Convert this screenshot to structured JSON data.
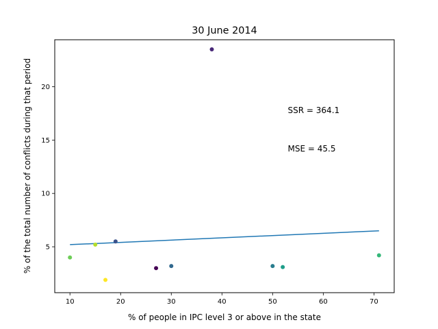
{
  "chart_data": {
    "type": "scatter",
    "title": "30 June 2014",
    "xlabel": "% of people in IPC level 3 or above in the state",
    "ylabel": "% of the total number of conflicts during that period",
    "xlim": [
      7,
      74
    ],
    "ylim": [
      0.7,
      24.4
    ],
    "xticks": [
      10,
      20,
      30,
      40,
      50,
      60,
      70
    ],
    "yticks": [
      5,
      10,
      15,
      20
    ],
    "grid": false,
    "points": [
      {
        "x": 38,
        "y": 23.5,
        "color": "#482878"
      },
      {
        "x": 19,
        "y": 5.5,
        "color": "#3b528b"
      },
      {
        "x": 15,
        "y": 5.2,
        "color": "#b5de2b"
      },
      {
        "x": 10,
        "y": 4.0,
        "color": "#6ece58"
      },
      {
        "x": 71,
        "y": 4.2,
        "color": "#35b779"
      },
      {
        "x": 30,
        "y": 3.2,
        "color": "#31688e"
      },
      {
        "x": 50,
        "y": 3.2,
        "color": "#287c8e"
      },
      {
        "x": 52,
        "y": 3.1,
        "color": "#1f9e89"
      },
      {
        "x": 27,
        "y": 3.0,
        "color": "#440154"
      },
      {
        "x": 17,
        "y": 1.9,
        "color": "#fde725"
      }
    ],
    "fit_line": {
      "x": [
        10,
        71
      ],
      "y": [
        5.2,
        6.5
      ],
      "color": "#1f77b4"
    },
    "annotations": [
      {
        "text": "SSR = 364.1",
        "x": 53,
        "y": 17.8
      },
      {
        "text": "MSE = 45.5",
        "x": 53,
        "y": 14.2
      }
    ]
  }
}
